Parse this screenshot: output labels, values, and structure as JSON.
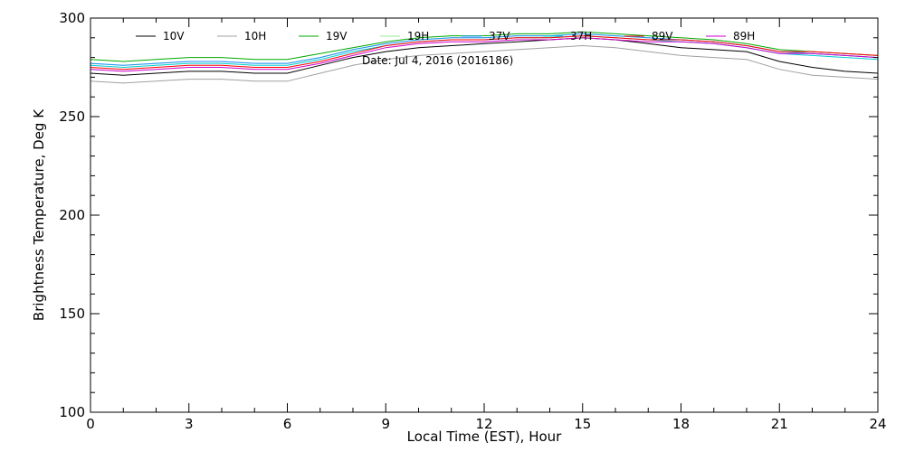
{
  "chart_data": {
    "type": "line",
    "xlabel": "Local Time (EST), Hour",
    "ylabel": "Brightness Temperature, Deg K",
    "annotation": "Date: Jul  4, 2016 (2016186)",
    "xlim": [
      0,
      24
    ],
    "ylim": [
      100,
      300
    ],
    "xticks": [
      0,
      3,
      6,
      9,
      12,
      15,
      18,
      21,
      24
    ],
    "yticks": [
      100,
      150,
      200,
      250,
      300
    ],
    "x": [
      0,
      1,
      2,
      3,
      4,
      5,
      6,
      7,
      8,
      9,
      10,
      11,
      12,
      13,
      14,
      15,
      16,
      17,
      18,
      19,
      20,
      21,
      22,
      23,
      24
    ],
    "series": [
      {
        "name": "10V",
        "color": "#000000",
        "values": [
          272,
          271,
          272,
          273,
          273,
          272,
          272,
          276,
          280,
          283,
          285,
          286,
          287,
          288,
          289,
          290,
          289,
          287,
          285,
          284,
          283,
          278,
          275,
          273,
          272
        ]
      },
      {
        "name": "10H",
        "color": "#a0a0a0",
        "values": [
          268,
          267,
          268,
          269,
          269,
          268,
          268,
          272,
          276,
          279,
          281,
          282,
          283,
          284,
          285,
          286,
          285,
          283,
          281,
          280,
          279,
          274,
          271,
          270,
          269
        ]
      },
      {
        "name": "19V",
        "color": "#00aa00",
        "values": [
          279,
          278,
          279,
          280,
          280,
          279,
          279,
          282,
          285,
          288,
          290,
          291,
          291,
          292,
          292,
          293,
          292,
          291,
          290,
          289,
          287,
          284,
          283,
          282,
          281
        ]
      },
      {
        "name": "19H",
        "color": "#90ee90",
        "values": [
          277,
          276,
          277,
          278,
          278,
          277,
          277,
          280,
          284,
          287,
          289,
          290,
          290,
          291,
          291,
          292,
          291,
          290,
          289,
          288,
          286,
          283,
          282,
          281,
          280
        ]
      },
      {
        "name": "37V",
        "color": "#1e90ff",
        "values": [
          277,
          276,
          277,
          278,
          278,
          277,
          277,
          280,
          284,
          287,
          289,
          290,
          290,
          291,
          291,
          292,
          291,
          290,
          289,
          288,
          286,
          283,
          282,
          281,
          280
        ]
      },
      {
        "name": "37H",
        "color": "#00ced1",
        "values": [
          276,
          275,
          276,
          277,
          277,
          276,
          276,
          279,
          283,
          286,
          288,
          289,
          289,
          290,
          290,
          291,
          290,
          289,
          288,
          287,
          285,
          282,
          281,
          280,
          279
        ]
      },
      {
        "name": "89V",
        "color": "#ff0000",
        "values": [
          275,
          274,
          275,
          276,
          276,
          275,
          275,
          278,
          282,
          286,
          288,
          289,
          289,
          290,
          290,
          291,
          290,
          289,
          289,
          288,
          286,
          283,
          283,
          282,
          281
        ]
      },
      {
        "name": "89H",
        "color": "#cc00cc",
        "values": [
          274,
          273,
          274,
          275,
          275,
          274,
          274,
          277,
          281,
          285,
          287,
          288,
          288,
          289,
          289,
          290,
          289,
          288,
          288,
          287,
          285,
          282,
          282,
          281,
          280
        ]
      }
    ]
  }
}
